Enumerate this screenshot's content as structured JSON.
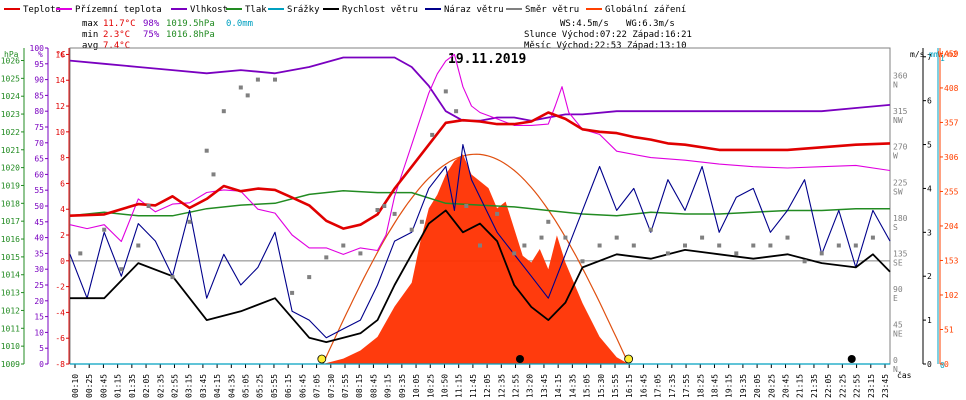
{
  "date_title": "19.11.2019",
  "legend": [
    {
      "label": "Teplota",
      "color": "#e00000"
    },
    {
      "label": "Přízemní teplota",
      "color": "#e000e0"
    },
    {
      "label": "Vlhkost",
      "color": "#7a00c0"
    },
    {
      "label": "Tlak",
      "color": "#228b22"
    },
    {
      "label": "Srážky",
      "color": "#00a0c0"
    },
    {
      "label": "Rychlost větru",
      "color": "#000000"
    },
    {
      "label": "Náraz větru",
      "color": "#00008b"
    },
    {
      "label": "Směr větru",
      "color": "#808080"
    },
    {
      "label": "Globální záření",
      "color": "#ff4000"
    }
  ],
  "stats": {
    "max_label": "max",
    "max_temp": "11.7°C",
    "max_hum": "98%",
    "max_press": "1019.5hPa",
    "rain": "0.0mm",
    "min_label": "min",
    "min_temp": "2.3°C",
    "min_hum": "75%",
    "min_press": "1016.8hPa",
    "avg_label": "avg",
    "avg_temp": "7.4°C"
  },
  "info": {
    "ws": "WS:4.5m/s",
    "wg": "WG:6.3m/s",
    "slunce": "Slunce Východ:07:22  Západ:16:21",
    "mesic": "Měsíc  Východ:22:53  Západ:13:10"
  },
  "axis_units": {
    "hpa": "hPa",
    "pct": "%",
    "degc": "°C",
    "ms": "m/s",
    "mm": "mm",
    "wm2": "W/m2",
    "cas": "čas"
  },
  "chart_data": {
    "type": "line",
    "title": "19.11.2019",
    "x_ticks": [
      "00:10",
      "00:25",
      "00:45",
      "01:15",
      "01:35",
      "02:05",
      "02:35",
      "02:55",
      "03:15",
      "03:45",
      "04:15",
      "04:35",
      "05:05",
      "05:25",
      "05:55",
      "06:15",
      "06:45",
      "07:05",
      "07:30",
      "07:55",
      "08:15",
      "08:45",
      "09:15",
      "09:35",
      "10:05",
      "10:25",
      "10:50",
      "11:15",
      "11:45",
      "12:05",
      "12:35",
      "12:55",
      "13:20",
      "13:45",
      "14:15",
      "14:35",
      "15:05",
      "15:30",
      "15:55",
      "16:15",
      "16:45",
      "17:05",
      "17:35",
      "17:55",
      "18:25",
      "18:45",
      "19:15",
      "19:35",
      "20:05",
      "20:25",
      "20:45",
      "21:15",
      "21:35",
      "22:05",
      "22:25",
      "22:55",
      "23:15",
      "23:45"
    ],
    "axes": {
      "hpa": {
        "ticks": [
          "1009",
          "1010",
          "1011",
          "1012",
          "1013",
          "1014",
          "1015",
          "1016",
          "1017",
          "1018",
          "1019",
          "1020",
          "1021",
          "1022",
          "1023",
          "1024",
          "1025",
          "1026"
        ],
        "range": [
          1009,
          1026.7
        ]
      },
      "pct": {
        "ticks": [
          "0",
          "5",
          "10",
          "15",
          "20",
          "25",
          "30",
          "35",
          "40",
          "45",
          "50",
          "55",
          "60",
          "65",
          "70",
          "75",
          "80",
          "85",
          "90",
          "95",
          "100"
        ],
        "range": [
          0,
          100
        ]
      },
      "degc": {
        "ticks": [
          "-8",
          "-6",
          "-4",
          "-2",
          "0",
          "2",
          "4",
          "6",
          "8",
          "10",
          "12",
          "14",
          "16"
        ],
        "range": [
          -8,
          16.5
        ]
      },
      "dir": {
        "ticks": [
          "0 N",
          "45 NE",
          "90 E",
          "135 SE",
          "180 S",
          "225 SW",
          "270 W",
          "315 NW",
          "360 N"
        ],
        "range": [
          0,
          400
        ]
      },
      "ms": {
        "ticks": [
          "0",
          "1",
          "2",
          "3",
          "4",
          "5",
          "6",
          "7"
        ],
        "range": [
          0,
          7.2
        ]
      },
      "wm2": {
        "ticks": [
          "0",
          "51",
          "102",
          "153",
          "204",
          "255",
          "306",
          "357",
          "408",
          "459"
        ],
        "range": [
          0,
          467
        ]
      }
    },
    "series": [
      {
        "name": "Teplota",
        "unit": "°C",
        "color": "#e00000",
        "x": [
          0,
          1,
          2,
          2.5,
          3,
          3.5,
          4,
          4.5,
          5,
          5.5,
          6,
          6.5,
          7,
          7.5,
          8,
          8.5,
          9,
          9.5,
          10,
          10.5,
          11,
          11.5,
          12,
          12.5,
          13,
          13.5,
          14,
          14.5,
          15,
          15.5,
          16,
          16.5,
          17,
          17.5,
          18,
          19,
          20,
          21,
          22,
          23,
          24
        ],
        "y": [
          3.5,
          3.6,
          4.4,
          4.3,
          5.0,
          4.1,
          4.8,
          5.8,
          5.4,
          5.6,
          5.5,
          4.9,
          4.3,
          3.1,
          2.5,
          2.8,
          3.6,
          5.6,
          7.3,
          9.0,
          10.7,
          10.9,
          10.8,
          10.6,
          10.6,
          10.8,
          11.5,
          11.0,
          10.2,
          10.0,
          9.9,
          9.6,
          9.4,
          9.1,
          9.0,
          8.6,
          8.6,
          8.6,
          8.8,
          9.0,
          9.1
        ]
      },
      {
        "name": "Přízemní teplota",
        "unit": "°C",
        "color": "#e000e0",
        "x": [
          0,
          0.5,
          1,
          1.5,
          2,
          2.5,
          3,
          3.5,
          4,
          4.5,
          5,
          5.5,
          6,
          6.5,
          7,
          7.5,
          8,
          8.5,
          9,
          9.25,
          9.5,
          9.75,
          10,
          10.25,
          10.5,
          10.75,
          11,
          11.25,
          11.5,
          11.75,
          12,
          12.5,
          13,
          13.5,
          14,
          14.2,
          14.4,
          14.6,
          15,
          15.5,
          16,
          17,
          18,
          19,
          20,
          21,
          22,
          23,
          24
        ],
        "y": [
          2.8,
          2.5,
          2.8,
          1.5,
          4.8,
          3.8,
          4.4,
          4.5,
          5.3,
          5.5,
          5.4,
          4.0,
          3.7,
          2.0,
          1.0,
          1.0,
          0.5,
          1.0,
          0.8,
          2,
          5,
          7,
          9,
          11,
          13,
          14.5,
          15.5,
          16.0,
          13.5,
          12,
          11.5,
          11.0,
          10.5,
          10.5,
          10.6,
          12,
          13.5,
          11.5,
          10.2,
          9.8,
          8.5,
          8.0,
          7.8,
          7.5,
          7.3,
          7.2,
          7.3,
          7.4,
          7.0
        ]
      },
      {
        "name": "Vlhkost",
        "unit": "%",
        "color": "#7a00c0",
        "x": [
          0,
          1,
          2,
          3,
          4,
          5,
          6,
          7,
          8,
          8.5,
          9,
          9.5,
          10,
          10.5,
          11,
          11.5,
          12,
          12.5,
          13,
          13.5,
          14,
          14.5,
          15,
          16,
          17,
          18,
          19,
          20,
          21,
          22,
          23,
          24
        ],
        "y": [
          96,
          95,
          94,
          93,
          92,
          93,
          92,
          94,
          97,
          97,
          97,
          97,
          94,
          88,
          80,
          77,
          77,
          78,
          78,
          77,
          78,
          79,
          79,
          80,
          80,
          80,
          80,
          80,
          80,
          80,
          81,
          82
        ]
      },
      {
        "name": "Tlak",
        "unit": "hPa",
        "color": "#228b22",
        "x": [
          0,
          1,
          2,
          3,
          4,
          5,
          6,
          7,
          8,
          9,
          10,
          11,
          12,
          13,
          14,
          15,
          16,
          17,
          18,
          19,
          20,
          21,
          22,
          23,
          24
        ],
        "y": [
          1017.3,
          1017.5,
          1017.3,
          1017.3,
          1017.7,
          1017.9,
          1018.0,
          1018.5,
          1018.7,
          1018.6,
          1018.6,
          1018.0,
          1017.9,
          1017.8,
          1017.6,
          1017.4,
          1017.3,
          1017.5,
          1017.4,
          1017.4,
          1017.5,
          1017.6,
          1017.6,
          1017.7,
          1017.7
        ]
      },
      {
        "name": "Srážky",
        "unit": "mm",
        "color": "#00a0c0",
        "x": [
          0,
          24
        ],
        "y": [
          0,
          0
        ]
      },
      {
        "name": "Rychlost větru",
        "unit": "m/s",
        "color": "#000000",
        "x": [
          0,
          1,
          2,
          3,
          4,
          5,
          6,
          7,
          7.5,
          8,
          8.5,
          9,
          9.5,
          10,
          10.5,
          11,
          11.5,
          12,
          12.5,
          13,
          13.5,
          14,
          14.5,
          15,
          16,
          17,
          18,
          19,
          20,
          21,
          22,
          23,
          23.5,
          24
        ],
        "y": [
          1.5,
          1.5,
          2.3,
          2.0,
          1.0,
          1.2,
          1.5,
          0.6,
          0.5,
          0.6,
          0.7,
          1.0,
          1.8,
          2.5,
          3.2,
          3.5,
          3.0,
          3.2,
          2.8,
          1.8,
          1.3,
          1.0,
          1.4,
          2.2,
          2.5,
          2.4,
          2.6,
          2.5,
          2.4,
          2.5,
          2.3,
          2.2,
          2.5,
          2.1
        ]
      },
      {
        "name": "Náraz větru",
        "unit": "m/s",
        "color": "#00008b",
        "x": [
          0,
          0.5,
          1,
          1.5,
          2,
          2.5,
          3,
          3.5,
          4,
          4.5,
          5,
          5.5,
          6,
          6.5,
          7,
          7.5,
          8,
          8.5,
          9,
          9.5,
          10,
          10.5,
          11,
          11.25,
          11.5,
          11.75,
          12,
          12.5,
          13,
          13.5,
          14,
          14.5,
          15,
          15.5,
          16,
          16.5,
          17,
          17.5,
          18,
          18.5,
          19,
          19.5,
          20,
          20.5,
          21,
          21.5,
          22,
          22.5,
          23,
          23.5,
          24
        ],
        "y": [
          2.5,
          1.5,
          3.0,
          2.0,
          3.2,
          2.8,
          2.0,
          3.5,
          1.5,
          2.5,
          1.8,
          2.2,
          3.0,
          1.2,
          1.0,
          0.6,
          0.8,
          1.0,
          1.8,
          2.8,
          3.0,
          4.0,
          4.5,
          3.5,
          5.0,
          4.2,
          3.8,
          3.0,
          2.5,
          2.0,
          1.5,
          2.5,
          3.5,
          4.5,
          3.5,
          4.0,
          3.0,
          4.2,
          3.5,
          4.5,
          3.0,
          3.8,
          4.0,
          3.0,
          3.5,
          4.2,
          2.5,
          3.5,
          2.2,
          3.5,
          2.8
        ]
      },
      {
        "name": "Směr větru",
        "unit": "°",
        "color": "#808080",
        "x": [
          0.3,
          1,
          1.5,
          2,
          2.3,
          3,
          3.5,
          4,
          4.2,
          4.5,
          5,
          5.2,
          5.5,
          6,
          6.5,
          7,
          7.5,
          8,
          8.5,
          9,
          9.2,
          9.5,
          10,
          10.3,
          10.6,
          11,
          11.3,
          11.6,
          12,
          12.5,
          13,
          13.3,
          13.8,
          14,
          14.5,
          15,
          15.5,
          16,
          16.5,
          17,
          17.5,
          18,
          18.5,
          19,
          19.5,
          20,
          20.5,
          21,
          21.5,
          22,
          22.5,
          23,
          23.5
        ],
        "y": [
          140,
          170,
          120,
          150,
          200,
          110,
          180,
          270,
          240,
          320,
          350,
          340,
          360,
          360,
          90,
          110,
          135,
          150,
          140,
          195,
          200,
          190,
          170,
          180,
          290,
          345,
          320,
          200,
          150,
          190,
          140,
          150,
          160,
          180,
          160,
          130,
          150,
          160,
          150,
          170,
          140,
          150,
          160,
          150,
          140,
          150,
          150,
          160,
          130,
          140,
          150,
          150,
          160
        ]
      },
      {
        "name": "Globální záření",
        "unit": "W/m2",
        "color": "#ff4000",
        "x": [
          7.4,
          8,
          8.5,
          9,
          9.5,
          10,
          10.25,
          10.5,
          10.75,
          11,
          11.25,
          11.5,
          11.75,
          12,
          12.25,
          12.5,
          12.75,
          13,
          13.25,
          13.5,
          13.75,
          14,
          14.25,
          14.5,
          15,
          15.5,
          16,
          16.35
        ],
        "y": [
          0,
          8,
          20,
          40,
          85,
          120,
          180,
          230,
          250,
          280,
          300,
          310,
          280,
          270,
          260,
          230,
          240,
          200,
          160,
          150,
          170,
          140,
          190,
          150,
          90,
          40,
          10,
          0
        ]
      }
    ]
  }
}
